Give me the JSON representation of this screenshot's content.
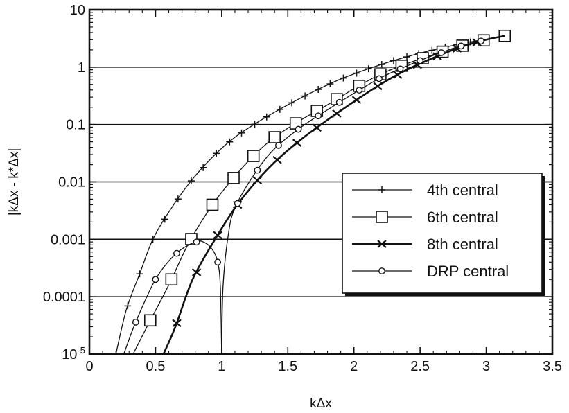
{
  "chart_data": {
    "type": "line",
    "title": "",
    "xlabel": "kΔx",
    "ylabel": "|kΔx - k*Δx|",
    "xlim": [
      0,
      3.5
    ],
    "ylim": [
      1e-05,
      10
    ],
    "yscale": "log",
    "grid": "horizontal",
    "legend_position": "center-right",
    "x_ticks": [
      "0",
      "0.5",
      "1",
      "1.5",
      "2",
      "2.5",
      "3",
      "3.5"
    ],
    "y_ticks": [
      {
        "value": 10,
        "label": "10"
      },
      {
        "value": 1,
        "label": "1"
      },
      {
        "value": 0.1,
        "label": "0.1"
      },
      {
        "value": 0.01,
        "label": "0.01"
      },
      {
        "value": 0.001,
        "label": "0.001"
      },
      {
        "value": 0.0001,
        "label": "0.0001"
      },
      {
        "value": 1e-05,
        "label": "10",
        "sup": "-5"
      }
    ],
    "series": [
      {
        "name": "4th central",
        "marker": "plus",
        "stroke_width": 1.3,
        "points": [
          [
            0.2,
            1e-05
          ],
          [
            0.28,
            6e-05
          ],
          [
            0.38,
            0.00025
          ],
          [
            0.48,
            0.001
          ],
          [
            0.62,
            0.0035
          ],
          [
            0.78,
            0.0112
          ],
          [
            0.95,
            0.03
          ],
          [
            1.1,
            0.06
          ],
          [
            1.3,
            0.12
          ],
          [
            1.5,
            0.22
          ],
          [
            1.7,
            0.38
          ],
          [
            1.9,
            0.62
          ],
          [
            2.1,
            0.92
          ],
          [
            2.3,
            1.3
          ],
          [
            2.5,
            1.75
          ],
          [
            2.7,
            2.25
          ],
          [
            2.9,
            2.8
          ],
          [
            3.0,
            3.1
          ]
        ],
        "marker_x": [
          0.29,
          0.38,
          0.48,
          0.57,
          0.67,
          0.77,
          0.86,
          0.96,
          1.06,
          1.15,
          1.25,
          1.34,
          1.44,
          1.53,
          1.63,
          1.73,
          1.82,
          1.92,
          2.02,
          2.11,
          2.21,
          2.3,
          2.4,
          2.49,
          2.59,
          2.69,
          2.78,
          2.88,
          2.98
        ]
      },
      {
        "name": "6th central",
        "marker": "square",
        "stroke_width": 1.3,
        "points": [
          [
            0.33,
            1e-05
          ],
          [
            0.45,
            3.5e-05
          ],
          [
            0.6,
            0.00016
          ],
          [
            0.75,
            0.00085
          ],
          [
            0.93,
            0.004
          ],
          [
            1.1,
            0.0125
          ],
          [
            1.25,
            0.03
          ],
          [
            1.4,
            0.06
          ],
          [
            1.6,
            0.12
          ],
          [
            1.8,
            0.22
          ],
          [
            2.0,
            0.42
          ],
          [
            2.2,
            0.75
          ],
          [
            2.4,
            1.15
          ],
          [
            2.6,
            1.65
          ],
          [
            2.8,
            2.3
          ],
          [
            3.0,
            3.0
          ],
          [
            3.14,
            3.5
          ]
        ],
        "marker_x": [
          0.46,
          0.62,
          0.77,
          0.93,
          1.09,
          1.24,
          1.4,
          1.56,
          1.72,
          1.87,
          2.04,
          2.2,
          2.36,
          2.52,
          2.67,
          2.82,
          2.98,
          3.14
        ]
      },
      {
        "name": "8th central",
        "marker": "x",
        "stroke_width": 2.6,
        "points": [
          [
            0.56,
            1e-05
          ],
          [
            0.65,
            3e-05
          ],
          [
            0.78,
            0.0002
          ],
          [
            0.95,
            0.001
          ],
          [
            1.1,
            0.0035
          ],
          [
            1.25,
            0.0095
          ],
          [
            1.4,
            0.022
          ],
          [
            1.6,
            0.055
          ],
          [
            1.8,
            0.12
          ],
          [
            2.0,
            0.25
          ],
          [
            2.2,
            0.5
          ],
          [
            2.4,
            0.9
          ],
          [
            2.6,
            1.45
          ],
          [
            2.8,
            2.2
          ],
          [
            3.0,
            3.0
          ],
          [
            3.14,
            3.5
          ]
        ],
        "marker_x": [
          0.66,
          0.81,
          0.97,
          1.12,
          1.27,
          1.42,
          1.57,
          1.72,
          1.87,
          2.02,
          2.18,
          2.33,
          2.48,
          2.63,
          2.78,
          2.93
        ]
      },
      {
        "name": "DRP central",
        "marker": "circle",
        "stroke_width": 1.3,
        "points": [
          [
            0.26,
            1e-05
          ],
          [
            0.35,
            3.6e-05
          ],
          [
            0.5,
            0.0002
          ],
          [
            0.65,
            0.00055
          ],
          [
            0.8,
            0.0009
          ],
          [
            0.87,
            0.00088
          ],
          [
            0.93,
            0.00066
          ],
          [
            0.97,
            0.0004
          ],
          [
            0.99,
            0.00015
          ],
          [
            1.0,
            1e-05
          ],
          [
            1.01,
            0.00015
          ],
          [
            1.05,
            0.0012
          ],
          [
            1.1,
            0.0035
          ],
          [
            1.25,
            0.014
          ],
          [
            1.4,
            0.038
          ],
          [
            1.6,
            0.09
          ],
          [
            1.8,
            0.18
          ],
          [
            2.0,
            0.35
          ],
          [
            2.2,
            0.65
          ],
          [
            2.4,
            1.05
          ],
          [
            2.6,
            1.6
          ],
          [
            2.8,
            2.3
          ],
          [
            3.0,
            3.0
          ],
          [
            3.14,
            3.5
          ]
        ],
        "marker_x": [
          0.35,
          0.5,
          0.66,
          0.81,
          0.97,
          1.12,
          1.27,
          1.43,
          1.58,
          1.73,
          1.89,
          2.04,
          2.19,
          2.35,
          2.5,
          2.66,
          2.81,
          2.96
        ]
      }
    ]
  }
}
